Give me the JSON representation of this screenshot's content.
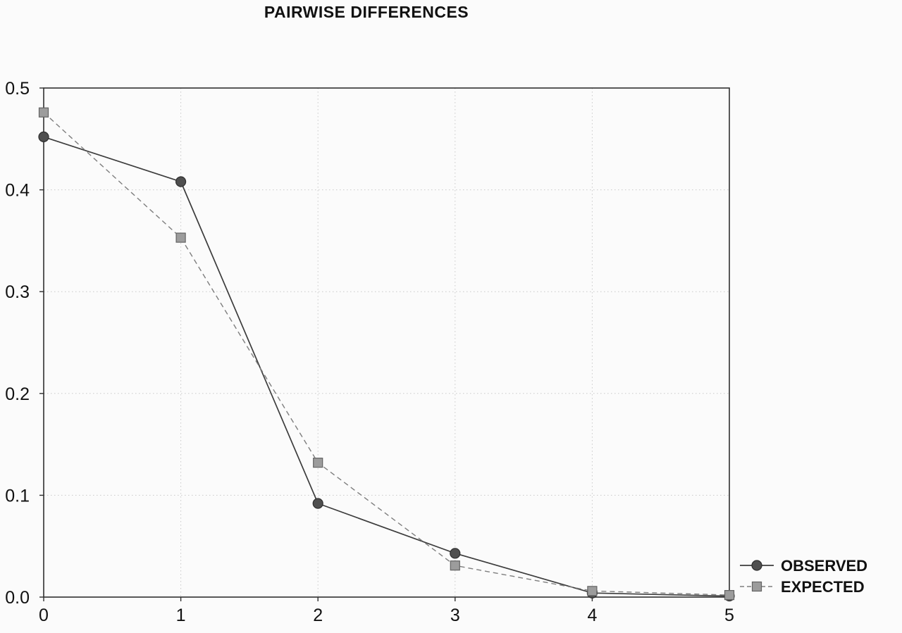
{
  "chart_data": {
    "type": "line",
    "title": "PAIRWISE DIFFERENCES",
    "x": [
      0,
      1,
      2,
      3,
      4,
      5
    ],
    "series": [
      {
        "name": "OBSERVED",
        "values": [
          0.452,
          0.408,
          0.092,
          0.043,
          0.004,
          0.001
        ],
        "marker": "circle",
        "line_style": "solid",
        "line_color": "#3c3c3c",
        "marker_fill": "#4f4f4f",
        "marker_stroke": "#2e2e2e"
      },
      {
        "name": "EXPECTED",
        "values": [
          0.476,
          0.353,
          0.132,
          0.031,
          0.006,
          0.002
        ],
        "marker": "square",
        "line_style": "dashed",
        "line_color": "#7e7e7e",
        "marker_fill": "#9c9c9c",
        "marker_stroke": "#636363"
      }
    ],
    "xlabel": "",
    "ylabel": "",
    "xlim": [
      0,
      5
    ],
    "ylim": [
      0,
      0.5
    ],
    "x_ticks": [
      "0",
      "1",
      "2",
      "3",
      "4",
      "5"
    ],
    "y_ticks": [
      "0.0",
      "0.1",
      "0.2",
      "0.3",
      "0.4",
      "0.5"
    ],
    "grid": true,
    "legend_position": "bottom-right",
    "colors": {
      "grid": "#c9c9c9",
      "frame": "#2f2f2f",
      "text": "#111111",
      "background": "#fbfbfb"
    }
  },
  "legend": {
    "items": [
      {
        "label": "OBSERVED"
      },
      {
        "label": "EXPECTED"
      }
    ]
  }
}
